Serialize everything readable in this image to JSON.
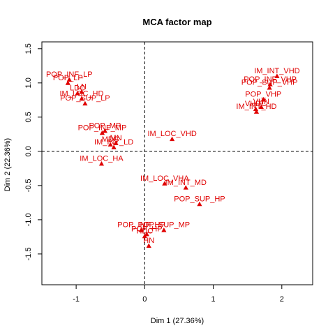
{
  "chart_data": {
    "type": "scatter",
    "title": "MCA factor map",
    "xlabel": "Dim 1 (27.36%)",
    "ylabel": "Dim 2 (22.36%)",
    "xlim": [
      -1.5,
      2.45
    ],
    "ylim": [
      -1.95,
      1.6
    ],
    "xticks": [
      -1,
      0,
      1,
      2
    ],
    "yticks": [
      -1.5,
      -1.0,
      -0.5,
      0.0,
      0.5,
      1.0,
      1.5
    ],
    "xtick_labels": [
      "-1",
      "0",
      "1",
      "2"
    ],
    "ytick_labels": [
      "-1.5",
      "-1.0",
      "-0.5",
      "0.0",
      "0.5",
      "1.0",
      "1.5"
    ],
    "reference_lines": {
      "x": 0,
      "y": 0,
      "style": "dashed"
    },
    "point_color": "#e00000",
    "points": [
      {
        "label": "POP_INF_LP",
        "x": -1.1,
        "y": 1.05
      },
      {
        "label": "POP_LP",
        "x": -1.12,
        "y": 1.0
      },
      {
        "label": "LDC",
        "x": -0.98,
        "y": 0.85
      },
      {
        "label": "LN",
        "x": -0.92,
        "y": 0.87
      },
      {
        "label": "IM_LOC_HD",
        "x": -0.92,
        "y": 0.77
      },
      {
        "label": "POP_SUP_LP",
        "x": -0.87,
        "y": 0.7
      },
      {
        "label": "POP_MP",
        "x": -0.58,
        "y": 0.3
      },
      {
        "label": "POP_INF_MP",
        "x": -0.62,
        "y": 0.27
      },
      {
        "label": "MDC",
        "x": -0.5,
        "y": 0.1
      },
      {
        "label": "MN",
        "x": -0.42,
        "y": 0.12
      },
      {
        "label": "IM_INT_LD",
        "x": -0.45,
        "y": 0.06
      },
      {
        "label": "IM_LOC_VHD",
        "x": 0.4,
        "y": 0.18
      },
      {
        "label": "IM_LOC_HA",
        "x": -0.63,
        "y": -0.18
      },
      {
        "label": "IM_INT_VHD",
        "x": 1.93,
        "y": 1.1
      },
      {
        "label": "POP_INF_VHP",
        "x": 1.83,
        "y": 0.98
      },
      {
        "label": "POP_SUP_VHP",
        "x": 1.82,
        "y": 0.93
      },
      {
        "label": "POP_VHP",
        "x": 1.73,
        "y": 0.76
      },
      {
        "label": "VHDC",
        "x": 1.62,
        "y": 0.62
      },
      {
        "label": "VHN",
        "x": 1.7,
        "y": 0.65
      },
      {
        "label": "IM_INT_HD",
        "x": 1.63,
        "y": 0.58
      },
      {
        "label": "IM_LOC_VHA",
        "x": 0.29,
        "y": -0.47
      },
      {
        "label": "IM_INT_MD",
        "x": 0.6,
        "y": -0.53
      },
      {
        "label": "POP_SUP_HP",
        "x": 0.8,
        "y": -0.77
      },
      {
        "label": "POP_INF_HP",
        "x": -0.05,
        "y": -1.15
      },
      {
        "label": "POP_SUP_MP",
        "x": 0.28,
        "y": -1.15
      },
      {
        "label": "HDC",
        "x": 0.0,
        "y": -1.24
      },
      {
        "label": "POP_HP",
        "x": 0.03,
        "y": -1.21
      },
      {
        "label": "HN",
        "x": 0.06,
        "y": -1.38
      }
    ]
  }
}
